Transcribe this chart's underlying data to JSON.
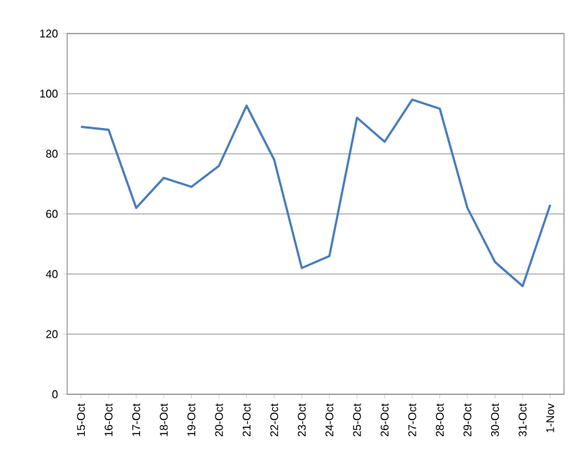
{
  "chart_data": {
    "type": "line",
    "categories": [
      "15-Oct",
      "16-Oct",
      "17-Oct",
      "18-Oct",
      "19-Oct",
      "20-Oct",
      "21-Oct",
      "22-Oct",
      "23-Oct",
      "24-Oct",
      "25-Oct",
      "26-Oct",
      "27-Oct",
      "28-Oct",
      "29-Oct",
      "30-Oct",
      "31-Oct",
      "1-Nov"
    ],
    "series": [
      {
        "color": "#4a7ebb",
        "values": [
          89,
          88,
          62,
          72,
          69,
          76,
          96,
          78,
          42,
          46,
          92,
          84,
          98,
          95,
          62,
          44,
          36,
          63
        ]
      }
    ],
    "ylim": [
      0,
      120
    ],
    "yticks": [
      0,
      20,
      40,
      60,
      80,
      100,
      120
    ],
    "grid": "y"
  }
}
